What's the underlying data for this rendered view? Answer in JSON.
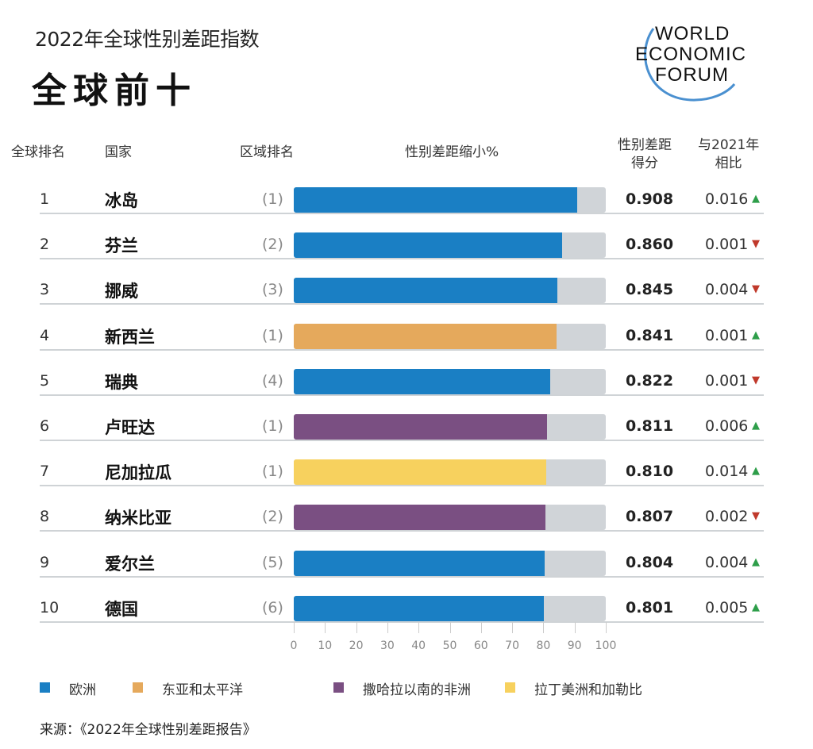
{
  "header": {
    "subtitle": "2022年全球性别差距指数",
    "title": "全球前十",
    "logo_text": [
      "WORLD",
      "ECONOMIC",
      "FORUM"
    ]
  },
  "columns": {
    "rank": "全球排名",
    "country": "国家",
    "region_rank": "区域排名",
    "bar": "性别差距缩小%",
    "score_l1": "性别差距",
    "score_l2": "得分",
    "change_l1": "与2021年",
    "change_l2": "相比"
  },
  "colors": {
    "欧洲": "#1a7fc4",
    "东亚和太平洋": "#e5a95c",
    "撒哈拉以南的非洲": "#7a4f82",
    "拉丁美洲和加勒比": "#f7d15e",
    "remainder": "#d0d4d8",
    "up": "#2e9e4a",
    "down": "#c0392b"
  },
  "chart_data": {
    "type": "bar",
    "orientation": "horizontal",
    "xlim": [
      0,
      100
    ],
    "xticks": [
      "0",
      "10",
      "20",
      "30",
      "40",
      "50",
      "60",
      "70",
      "80",
      "90",
      "100"
    ],
    "grid": false,
    "legend_placement": "bottom",
    "legend": [
      "欧洲",
      "东亚和太平洋",
      "撒哈拉以南的非洲",
      "拉丁美洲和加勒比"
    ],
    "rows": [
      {
        "rank": "1",
        "country": "冰岛",
        "region_rank": "(1)",
        "region": "欧洲",
        "value": 90.8,
        "score": "0.908",
        "change": "0.016",
        "direction": "up"
      },
      {
        "rank": "2",
        "country": "芬兰",
        "region_rank": "(2)",
        "region": "欧洲",
        "value": 86.0,
        "score": "0.860",
        "change": "0.001",
        "direction": "down"
      },
      {
        "rank": "3",
        "country": "挪威",
        "region_rank": "(3)",
        "region": "欧洲",
        "value": 84.5,
        "score": "0.845",
        "change": "0.004",
        "direction": "down"
      },
      {
        "rank": "4",
        "country": "新西兰",
        "region_rank": "(1)",
        "region": "东亚和太平洋",
        "value": 84.1,
        "score": "0.841",
        "change": "0.001",
        "direction": "up"
      },
      {
        "rank": "5",
        "country": "瑞典",
        "region_rank": "(4)",
        "region": "欧洲",
        "value": 82.2,
        "score": "0.822",
        "change": "0.001",
        "direction": "down"
      },
      {
        "rank": "6",
        "country": "卢旺达",
        "region_rank": "(1)",
        "region": "撒哈拉以南的非洲",
        "value": 81.1,
        "score": "0.811",
        "change": "0.006",
        "direction": "up"
      },
      {
        "rank": "7",
        "country": "尼加拉瓜",
        "region_rank": "(1)",
        "region": "拉丁美洲和加勒比",
        "value": 81.0,
        "score": "0.810",
        "change": "0.014",
        "direction": "up"
      },
      {
        "rank": "8",
        "country": "纳米比亚",
        "region_rank": "(2)",
        "region": "撒哈拉以南的非洲",
        "value": 80.7,
        "score": "0.807",
        "change": "0.002",
        "direction": "down"
      },
      {
        "rank": "9",
        "country": "爱尔兰",
        "region_rank": "(5)",
        "region": "欧洲",
        "value": 80.4,
        "score": "0.804",
        "change": "0.004",
        "direction": "up"
      },
      {
        "rank": "10",
        "country": "德国",
        "region_rank": "(6)",
        "region": "欧洲",
        "value": 80.1,
        "score": "0.801",
        "change": "0.005",
        "direction": "up"
      }
    ]
  },
  "source": "来源：《2022年全球性别差距报告》"
}
